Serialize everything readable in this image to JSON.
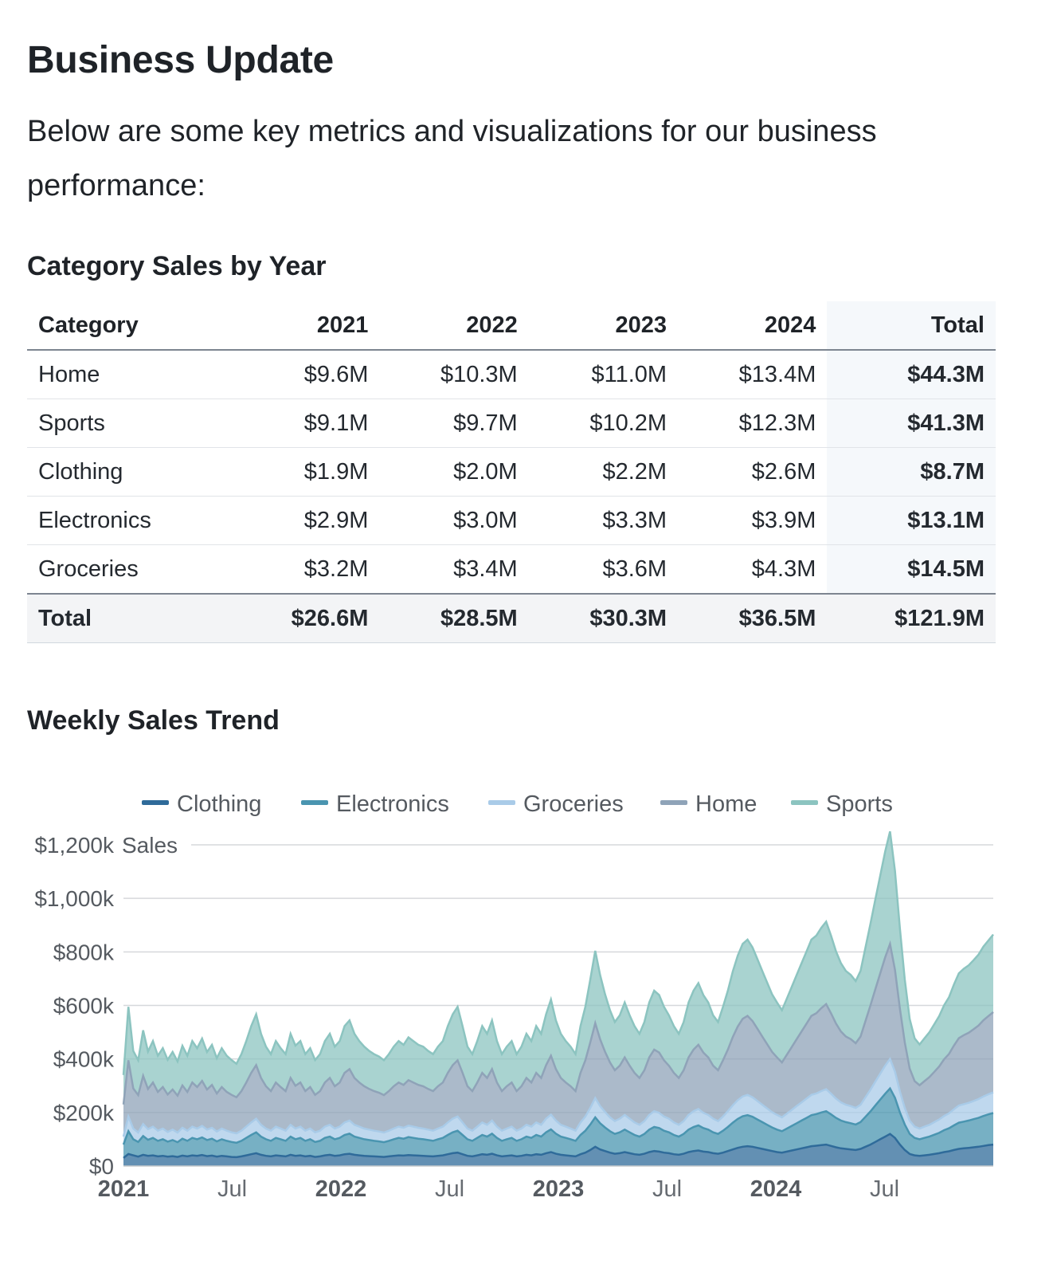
{
  "title": "Business Update",
  "intro": "Below are some key metrics and visualizations for our business performance:",
  "table_section": {
    "heading": "Category Sales by Year",
    "columns": [
      "Category",
      "2021",
      "2022",
      "2023",
      "2024",
      "Total"
    ],
    "rows": [
      [
        "Home",
        "$9.6M",
        "$10.3M",
        "$11.0M",
        "$13.4M",
        "$44.3M"
      ],
      [
        "Sports",
        "$9.1M",
        "$9.7M",
        "$10.2M",
        "$12.3M",
        "$41.3M"
      ],
      [
        "Clothing",
        "$1.9M",
        "$2.0M",
        "$2.2M",
        "$2.6M",
        "$8.7M"
      ],
      [
        "Electronics",
        "$2.9M",
        "$3.0M",
        "$3.3M",
        "$3.9M",
        "$13.1M"
      ],
      [
        "Groceries",
        "$3.2M",
        "$3.4M",
        "$3.6M",
        "$4.3M",
        "$14.5M"
      ]
    ],
    "total_row": [
      "Total",
      "$26.6M",
      "$28.5M",
      "$30.3M",
      "$36.5M",
      "$121.9M"
    ]
  },
  "chart_section": {
    "heading": "Weekly Sales Trend"
  },
  "chart_data": {
    "type": "area",
    "stacked": true,
    "ylabel": "Sales",
    "ylim": [
      0,
      1200
    ],
    "y_unit": "k",
    "yticks": [
      "$0",
      "$200k",
      "$400k",
      "$600k",
      "$800k",
      "$1,000k",
      "$1,200k"
    ],
    "xticks": [
      {
        "label": "2021",
        "bold": true
      },
      {
        "label": "Jul",
        "bold": false
      },
      {
        "label": "2022",
        "bold": true
      },
      {
        "label": "Jul",
        "bold": false
      },
      {
        "label": "2023",
        "bold": true
      },
      {
        "label": "Jul",
        "bold": false
      },
      {
        "label": "2024",
        "bold": true
      },
      {
        "label": "Jul",
        "bold": false
      }
    ],
    "x_start": "2021-01",
    "x_end": "2024-12",
    "legend_position": "top",
    "grid": true,
    "series": [
      {
        "name": "Clothing",
        "color": "#2f6b9a",
        "values": [
          30,
          45,
          40,
          35,
          42,
          38,
          40,
          36,
          38,
          35,
          37,
          34,
          39,
          36,
          40,
          38,
          41,
          37,
          39,
          35,
          38,
          36,
          34,
          33,
          36,
          40,
          44,
          48,
          42,
          38,
          36,
          40,
          38,
          36,
          42,
          38,
          40,
          36,
          38,
          34,
          36,
          40,
          42,
          38,
          40,
          44,
          46,
          42,
          40,
          38,
          37,
          36,
          35,
          34,
          36,
          38,
          40,
          39,
          41,
          40,
          39,
          38,
          37,
          36,
          38,
          40,
          44,
          48,
          50,
          44,
          38,
          36,
          40,
          44,
          42,
          46,
          40,
          36,
          38,
          40,
          36,
          38,
          42,
          40,
          44,
          42,
          48,
          52,
          46,
          42,
          40,
          38,
          36,
          44,
          50,
          60,
          72,
          62,
          56,
          50,
          46,
          48,
          52,
          48,
          44,
          42,
          46,
          52,
          56,
          54,
          50,
          48,
          44,
          42,
          46,
          52,
          56,
          58,
          54,
          52,
          48,
          46,
          50,
          56,
          62,
          68,
          72,
          74,
          72,
          68,
          64,
          60,
          56,
          52,
          50,
          54,
          58,
          62,
          66,
          70,
          74,
          76,
          78,
          80,
          75,
          70,
          66,
          64,
          62,
          60,
          64,
          72,
          80,
          90,
          100,
          110,
          120,
          105,
          80,
          60,
          45,
          40,
          38,
          40,
          42,
          45,
          48,
          52,
          55,
          60,
          64,
          66,
          68,
          70,
          72,
          75,
          78,
          80
        ]
      },
      {
        "name": "Electronics",
        "color": "#4a95b0",
        "values": [
          50,
          85,
          60,
          55,
          70,
          60,
          65,
          58,
          62,
          56,
          60,
          55,
          63,
          58,
          65,
          62,
          66,
          60,
          63,
          57,
          62,
          58,
          56,
          54,
          58,
          65,
          72,
          78,
          68,
          62,
          58,
          65,
          62,
          58,
          68,
          62,
          65,
          58,
          62,
          56,
          58,
          65,
          68,
          62,
          65,
          72,
          75,
          68,
          65,
          62,
          60,
          58,
          57,
          55,
          58,
          62,
          65,
          63,
          67,
          65,
          63,
          62,
          60,
          58,
          62,
          65,
          72,
          78,
          82,
          72,
          62,
          58,
          65,
          72,
          68,
          75,
          65,
          58,
          62,
          65,
          58,
          62,
          68,
          65,
          72,
          68,
          78,
          85,
          75,
          68,
          65,
          62,
          58,
          72,
          82,
          95,
          110,
          98,
          88,
          80,
          74,
          78,
          84,
          78,
          72,
          68,
          74,
          84,
          90,
          88,
          82,
          78,
          72,
          68,
          74,
          84,
          90,
          94,
          88,
          84,
          78,
          74,
          82,
          90,
          100,
          108,
          114,
          116,
          112,
          106,
          100,
          94,
          88,
          84,
          80,
          86,
          92,
          98,
          104,
          110,
          116,
          118,
          122,
          125,
          118,
          110,
          104,
          100,
          98,
          95,
          100,
          112,
          124,
          136,
          148,
          160,
          170,
          150,
          120,
          95,
          75,
          65,
          62,
          65,
          68,
          72,
          76,
          82,
          86,
          92,
          98,
          100,
          102,
          105,
          108,
          112,
          115,
          118
        ]
      },
      {
        "name": "Groceries",
        "color": "#a9cbe8",
        "values": [
          30,
          55,
          40,
          35,
          45,
          40,
          42,
          38,
          40,
          36,
          39,
          36,
          41,
          38,
          42,
          40,
          43,
          39,
          41,
          37,
          40,
          38,
          36,
          35,
          38,
          42,
          47,
          51,
          44,
          40,
          38,
          42,
          40,
          38,
          44,
          40,
          42,
          38,
          40,
          36,
          38,
          42,
          44,
          40,
          42,
          47,
          49,
          44,
          42,
          40,
          39,
          38,
          37,
          36,
          38,
          40,
          42,
          41,
          43,
          42,
          41,
          40,
          39,
          38,
          40,
          42,
          47,
          51,
          53,
          47,
          40,
          38,
          42,
          47,
          44,
          49,
          42,
          38,
          40,
          42,
          38,
          40,
          44,
          42,
          47,
          44,
          51,
          55,
          49,
          44,
          42,
          40,
          38,
          47,
          53,
          62,
          72,
          64,
          58,
          52,
          48,
          51,
          55,
          51,
          47,
          44,
          48,
          55,
          59,
          57,
          53,
          51,
          47,
          44,
          48,
          55,
          59,
          61,
          57,
          55,
          51,
          48,
          53,
          59,
          65,
          70,
          74,
          76,
          73,
          69,
          65,
          61,
          57,
          55,
          52,
          56,
          60,
          64,
          68,
          72,
          76,
          77,
          80,
          82,
          77,
          72,
          68,
          65,
          64,
          62,
          65,
          73,
          81,
          89,
          97,
          105,
          110,
          98,
          78,
          62,
          49,
          42,
          40,
          42,
          44,
          47,
          50,
          53,
          56,
          60,
          64,
          65,
          66,
          68,
          70,
          73,
          75,
          77
        ]
      },
      {
        "name": "Home",
        "color": "#8fa3b8",
        "values": [
          120,
          210,
          150,
          140,
          180,
          150,
          165,
          145,
          155,
          140,
          150,
          138,
          158,
          145,
          165,
          155,
          168,
          150,
          160,
          142,
          155,
          145,
          140,
          135,
          148,
          165,
          185,
          200,
          175,
          158,
          148,
          165,
          155,
          148,
          175,
          160,
          165,
          148,
          155,
          140,
          148,
          165,
          175,
          158,
          165,
          185,
          192,
          175,
          165,
          158,
          152,
          148,
          145,
          140,
          148,
          158,
          165,
          160,
          170,
          165,
          160,
          158,
          152,
          148,
          158,
          165,
          185,
          200,
          210,
          185,
          158,
          148,
          165,
          185,
          175,
          192,
          165,
          148,
          158,
          165,
          148,
          158,
          175,
          165,
          185,
          175,
          200,
          220,
          192,
          175,
          165,
          158,
          148,
          185,
          210,
          245,
          280,
          250,
          225,
          205,
          190,
          198,
          215,
          198,
          185,
          175,
          190,
          215,
          230,
          225,
          210,
          198,
          185,
          175,
          190,
          215,
          230,
          240,
          225,
          215,
          198,
          190,
          210,
          230,
          255,
          275,
          290,
          295,
          285,
          270,
          255,
          240,
          225,
          215,
          205,
          220,
          235,
          250,
          265,
          280,
          295,
          300,
          310,
          318,
          300,
          280,
          265,
          255,
          250,
          242,
          255,
          285,
          315,
          345,
          375,
          405,
          430,
          380,
          310,
          245,
          195,
          170,
          162,
          170,
          178,
          188,
          198,
          212,
          222,
          238,
          252,
          258,
          262,
          268,
          275,
          285,
          292,
          300
        ]
      },
      {
        "name": "Sports",
        "color": "#8cc4c0",
        "values": [
          110,
          200,
          140,
          130,
          170,
          140,
          155,
          135,
          145,
          130,
          140,
          128,
          148,
          135,
          155,
          145,
          158,
          140,
          150,
          132,
          145,
          135,
          130,
          125,
          138,
          155,
          175,
          190,
          165,
          148,
          138,
          155,
          145,
          138,
          165,
          150,
          155,
          138,
          145,
          130,
          138,
          155,
          165,
          148,
          155,
          175,
          182,
          165,
          155,
          148,
          142,
          138,
          135,
          130,
          138,
          148,
          155,
          150,
          160,
          155,
          150,
          148,
          142,
          138,
          148,
          155,
          175,
          190,
          200,
          175,
          148,
          138,
          155,
          175,
          165,
          182,
          155,
          138,
          148,
          155,
          138,
          148,
          165,
          155,
          175,
          165,
          190,
          210,
          182,
          165,
          155,
          148,
          138,
          175,
          200,
          235,
          270,
          240,
          215,
          195,
          180,
          188,
          205,
          188,
          175,
          165,
          180,
          205,
          220,
          215,
          200,
          188,
          175,
          165,
          180,
          205,
          220,
          230,
          215,
          205,
          188,
          180,
          200,
          220,
          245,
          265,
          280,
          285,
          275,
          260,
          245,
          230,
          215,
          205,
          195,
          210,
          225,
          240,
          255,
          270,
          285,
          290,
          300,
          308,
          290,
          270,
          255,
          245,
          240,
          232,
          245,
          275,
          305,
          335,
          365,
          395,
          420,
          370,
          300,
          235,
          185,
          160,
          152,
          160,
          168,
          178,
          188,
          202,
          212,
          228,
          242,
          248,
          252,
          258,
          265,
          275,
          282,
          290
        ]
      }
    ]
  }
}
